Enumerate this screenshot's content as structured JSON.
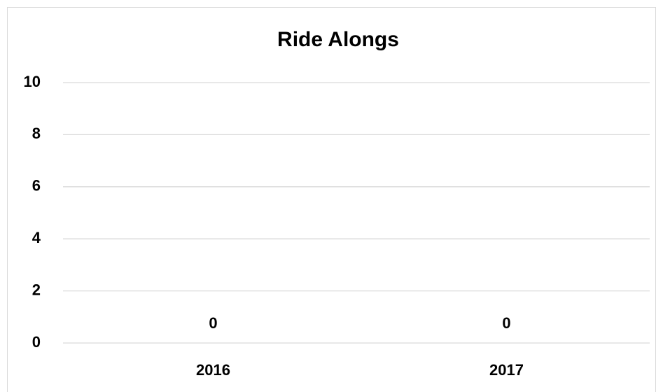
{
  "chart_data": {
    "type": "bar",
    "title": "Ride Alongs",
    "categories": [
      "2016",
      "2017"
    ],
    "values": [
      0,
      0
    ],
    "color": "#4472c4",
    "ylim": [
      0,
      10
    ],
    "yticks": [
      0,
      2,
      4,
      6,
      8,
      10
    ],
    "grid": true
  }
}
